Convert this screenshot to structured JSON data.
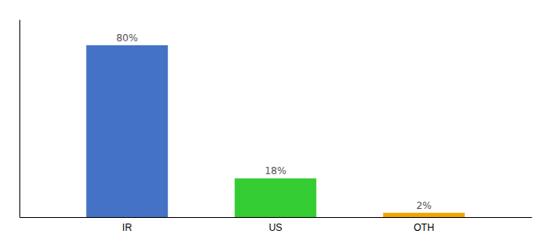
{
  "chart_data": {
    "type": "bar",
    "categories": [
      "IR",
      "US",
      "OTH"
    ],
    "values": [
      80,
      18,
      2
    ],
    "value_labels": [
      "80%",
      "18%",
      "2%"
    ],
    "colors": [
      "#4472c4",
      "#33cc33",
      "#f0a500"
    ],
    "ylim": [
      0,
      92
    ],
    "data_labels": true,
    "tick_labels": "x"
  }
}
